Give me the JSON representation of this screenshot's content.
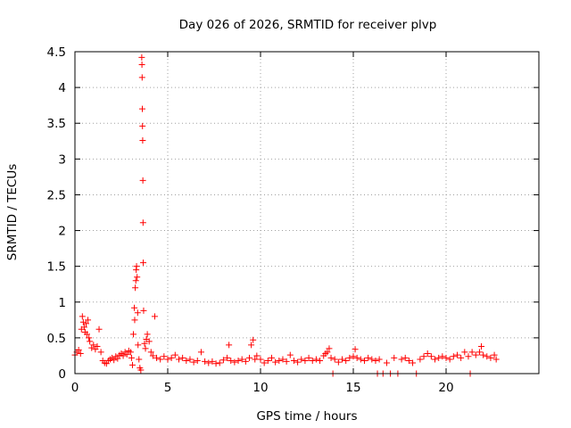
{
  "chart_data": {
    "type": "scatter",
    "title": "Day 026 of 2026, SRMTID for receiver plvp",
    "xlabel": "GPS time / hours",
    "ylabel": "SRMTID / TECUs",
    "xlim": [
      0,
      25
    ],
    "ylim": [
      0,
      4.5
    ],
    "xticks": [
      0,
      5,
      10,
      15,
      20
    ],
    "yticks": [
      0,
      0.5,
      1,
      1.5,
      2,
      2.5,
      3,
      3.5,
      4,
      4.5
    ],
    "grid": true,
    "marker": "plus",
    "marker_color": "#ff0000",
    "series": [
      {
        "name": "SRMTID",
        "points": [
          [
            0.0,
            0.26
          ],
          [
            0.1,
            0.3
          ],
          [
            0.2,
            0.33
          ],
          [
            0.3,
            0.28
          ],
          [
            0.35,
            0.62
          ],
          [
            0.4,
            0.8
          ],
          [
            0.45,
            0.72
          ],
          [
            0.5,
            0.65
          ],
          [
            0.55,
            0.58
          ],
          [
            0.6,
            0.7
          ],
          [
            0.65,
            0.55
          ],
          [
            0.7,
            0.75
          ],
          [
            0.75,
            0.5
          ],
          [
            0.8,
            0.45
          ],
          [
            0.9,
            0.36
          ],
          [
            1.0,
            0.4
          ],
          [
            1.1,
            0.34
          ],
          [
            1.2,
            0.38
          ],
          [
            1.3,
            0.62
          ],
          [
            1.4,
            0.3
          ],
          [
            1.5,
            0.18
          ],
          [
            1.6,
            0.15
          ],
          [
            1.7,
            0.14
          ],
          [
            1.8,
            0.18
          ],
          [
            1.9,
            0.2
          ],
          [
            2.0,
            0.22
          ],
          [
            2.1,
            0.19
          ],
          [
            2.2,
            0.24
          ],
          [
            2.3,
            0.21
          ],
          [
            2.4,
            0.26
          ],
          [
            2.5,
            0.28
          ],
          [
            2.6,
            0.25
          ],
          [
            2.7,
            0.3
          ],
          [
            2.8,
            0.27
          ],
          [
            2.9,
            0.32
          ],
          [
            3.0,
            0.3
          ],
          [
            3.05,
            0.22
          ],
          [
            3.1,
            0.12
          ],
          [
            3.15,
            0.55
          ],
          [
            3.2,
            0.92
          ],
          [
            3.22,
            0.75
          ],
          [
            3.25,
            1.2
          ],
          [
            3.28,
            1.3
          ],
          [
            3.3,
            1.45
          ],
          [
            3.32,
            1.5
          ],
          [
            3.35,
            1.35
          ],
          [
            3.38,
            0.85
          ],
          [
            3.4,
            0.4
          ],
          [
            3.45,
            0.2
          ],
          [
            3.5,
            0.08
          ],
          [
            3.55,
            0.05
          ],
          [
            3.6,
            4.42
          ],
          [
            3.61,
            4.32
          ],
          [
            3.62,
            4.14
          ],
          [
            3.63,
            3.7
          ],
          [
            3.64,
            3.46
          ],
          [
            3.65,
            3.26
          ],
          [
            3.66,
            2.7
          ],
          [
            3.67,
            2.11
          ],
          [
            3.68,
            1.55
          ],
          [
            3.7,
            0.88
          ],
          [
            3.75,
            0.42
          ],
          [
            3.8,
            0.35
          ],
          [
            3.85,
            0.48
          ],
          [
            3.9,
            0.55
          ],
          [
            4.0,
            0.45
          ],
          [
            4.1,
            0.3
          ],
          [
            4.2,
            0.25
          ],
          [
            4.3,
            0.8
          ],
          [
            4.4,
            0.22
          ],
          [
            4.6,
            0.2
          ],
          [
            4.8,
            0.24
          ],
          [
            5.0,
            0.2
          ],
          [
            5.2,
            0.22
          ],
          [
            5.4,
            0.26
          ],
          [
            5.6,
            0.2
          ],
          [
            5.8,
            0.22
          ],
          [
            6.0,
            0.18
          ],
          [
            6.2,
            0.2
          ],
          [
            6.4,
            0.16
          ],
          [
            6.6,
            0.18
          ],
          [
            6.8,
            0.3
          ],
          [
            7.0,
            0.17
          ],
          [
            7.2,
            0.15
          ],
          [
            7.4,
            0.17
          ],
          [
            7.6,
            0.14
          ],
          [
            7.8,
            0.15
          ],
          [
            8.0,
            0.19
          ],
          [
            8.2,
            0.22
          ],
          [
            8.3,
            0.4
          ],
          [
            8.4,
            0.18
          ],
          [
            8.6,
            0.16
          ],
          [
            8.8,
            0.18
          ],
          [
            9.0,
            0.2
          ],
          [
            9.2,
            0.17
          ],
          [
            9.4,
            0.22
          ],
          [
            9.5,
            0.4
          ],
          [
            9.6,
            0.47
          ],
          [
            9.7,
            0.2
          ],
          [
            9.8,
            0.25
          ],
          [
            10.0,
            0.2
          ],
          [
            10.2,
            0.15
          ],
          [
            10.4,
            0.18
          ],
          [
            10.6,
            0.22
          ],
          [
            10.8,
            0.16
          ],
          [
            11.0,
            0.18
          ],
          [
            11.2,
            0.2
          ],
          [
            11.4,
            0.17
          ],
          [
            11.6,
            0.26
          ],
          [
            11.8,
            0.18
          ],
          [
            12.0,
            0.16
          ],
          [
            12.2,
            0.2
          ],
          [
            12.4,
            0.18
          ],
          [
            12.6,
            0.22
          ],
          [
            12.8,
            0.18
          ],
          [
            13.0,
            0.2
          ],
          [
            13.2,
            0.18
          ],
          [
            13.4,
            0.25
          ],
          [
            13.5,
            0.28
          ],
          [
            13.6,
            0.3
          ],
          [
            13.7,
            0.35
          ],
          [
            13.8,
            0.22
          ],
          [
            13.9,
            0.0
          ],
          [
            14.0,
            0.2
          ],
          [
            14.2,
            0.16
          ],
          [
            14.4,
            0.2
          ],
          [
            14.6,
            0.18
          ],
          [
            14.8,
            0.22
          ],
          [
            15.0,
            0.24
          ],
          [
            15.1,
            0.34
          ],
          [
            15.2,
            0.22
          ],
          [
            15.4,
            0.2
          ],
          [
            15.6,
            0.18
          ],
          [
            15.8,
            0.22
          ],
          [
            16.0,
            0.2
          ],
          [
            16.2,
            0.18
          ],
          [
            16.3,
            0.0
          ],
          [
            16.4,
            0.2
          ],
          [
            16.6,
            0.0
          ],
          [
            16.8,
            0.15
          ],
          [
            17.0,
            0.0
          ],
          [
            17.2,
            0.22
          ],
          [
            17.4,
            0.0
          ],
          [
            17.6,
            0.2
          ],
          [
            17.8,
            0.22
          ],
          [
            18.0,
            0.18
          ],
          [
            18.2,
            0.15
          ],
          [
            18.4,
            0.0
          ],
          [
            18.6,
            0.2
          ],
          [
            18.8,
            0.24
          ],
          [
            19.0,
            0.28
          ],
          [
            19.2,
            0.24
          ],
          [
            19.4,
            0.2
          ],
          [
            19.6,
            0.22
          ],
          [
            19.8,
            0.24
          ],
          [
            20.0,
            0.22
          ],
          [
            20.2,
            0.2
          ],
          [
            20.4,
            0.24
          ],
          [
            20.6,
            0.26
          ],
          [
            20.8,
            0.22
          ],
          [
            21.0,
            0.3
          ],
          [
            21.2,
            0.24
          ],
          [
            21.3,
            0.0
          ],
          [
            21.4,
            0.3
          ],
          [
            21.6,
            0.26
          ],
          [
            21.8,
            0.3
          ],
          [
            21.9,
            0.38
          ],
          [
            22.0,
            0.26
          ],
          [
            22.2,
            0.24
          ],
          [
            22.4,
            0.22
          ],
          [
            22.6,
            0.26
          ],
          [
            22.7,
            0.2
          ]
        ]
      }
    ]
  }
}
